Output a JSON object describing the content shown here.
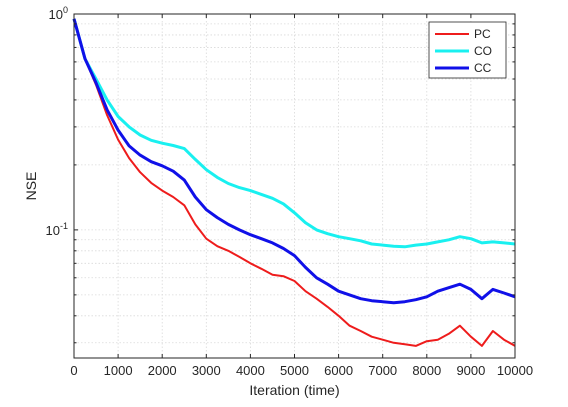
{
  "chart_data": {
    "type": "line",
    "title": "",
    "xlabel": "Iteration (time)",
    "ylabel": "NSE",
    "xlim": [
      0,
      10000
    ],
    "ylim": [
      0.0255,
      1
    ],
    "yscale": "log",
    "grid": true,
    "legend_position": "top-right",
    "x_ticks": [
      0,
      1000,
      2000,
      3000,
      4000,
      5000,
      6000,
      7000,
      8000,
      9000,
      10000
    ],
    "x_tick_labels": [
      "0",
      "1000",
      "2000",
      "3000",
      "4000",
      "5000",
      "6000",
      "7000",
      "8000",
      "9000",
      "10000"
    ],
    "y_ticks": [
      {
        "value": 1,
        "base": "10",
        "exp": "0"
      },
      {
        "value": 0.1,
        "base": "10",
        "exp": "-1"
      }
    ],
    "x": [
      0,
      250,
      500,
      750,
      1000,
      1250,
      1500,
      1750,
      2000,
      2250,
      2500,
      2750,
      3000,
      3250,
      3500,
      3750,
      4000,
      4250,
      4500,
      4750,
      5000,
      5250,
      5500,
      5750,
      6000,
      6250,
      6500,
      6750,
      7000,
      7250,
      7500,
      7750,
      8000,
      8250,
      8500,
      8750,
      9000,
      9250,
      9500,
      9750,
      10000
    ],
    "series": [
      {
        "name": "PC",
        "color": "#ee1c1c",
        "width": 2,
        "values": [
          0.95,
          0.62,
          0.47,
          0.34,
          0.262,
          0.215,
          0.185,
          0.165,
          0.152,
          0.142,
          0.13,
          0.106,
          0.091,
          0.084,
          0.08,
          0.075,
          0.07,
          0.066,
          0.062,
          0.061,
          0.058,
          0.052,
          0.048,
          0.044,
          0.04,
          0.036,
          0.034,
          0.032,
          0.031,
          0.03,
          0.0295,
          0.029,
          0.0305,
          0.031,
          0.033,
          0.036,
          0.032,
          0.029,
          0.034,
          0.031,
          0.029
        ]
      },
      {
        "name": "CO",
        "color": "#19f0f0",
        "width": 3,
        "values": [
          0.95,
          0.62,
          0.5,
          0.4,
          0.335,
          0.3,
          0.275,
          0.26,
          0.252,
          0.246,
          0.238,
          0.212,
          0.19,
          0.175,
          0.164,
          0.157,
          0.152,
          0.146,
          0.14,
          0.132,
          0.12,
          0.108,
          0.1,
          0.096,
          0.093,
          0.091,
          0.089,
          0.086,
          0.085,
          0.084,
          0.0835,
          0.085,
          0.086,
          0.088,
          0.09,
          0.093,
          0.091,
          0.087,
          0.088,
          0.087,
          0.086
        ]
      },
      {
        "name": "CC",
        "color": "#1010e8",
        "width": 3,
        "values": [
          0.95,
          0.62,
          0.48,
          0.36,
          0.29,
          0.245,
          0.222,
          0.207,
          0.198,
          0.187,
          0.17,
          0.142,
          0.124,
          0.114,
          0.106,
          0.1,
          0.095,
          0.091,
          0.087,
          0.082,
          0.076,
          0.067,
          0.06,
          0.056,
          0.052,
          0.05,
          0.048,
          0.047,
          0.0465,
          0.046,
          0.0465,
          0.0475,
          0.049,
          0.052,
          0.054,
          0.056,
          0.053,
          0.048,
          0.053,
          0.051,
          0.049
        ]
      }
    ]
  }
}
